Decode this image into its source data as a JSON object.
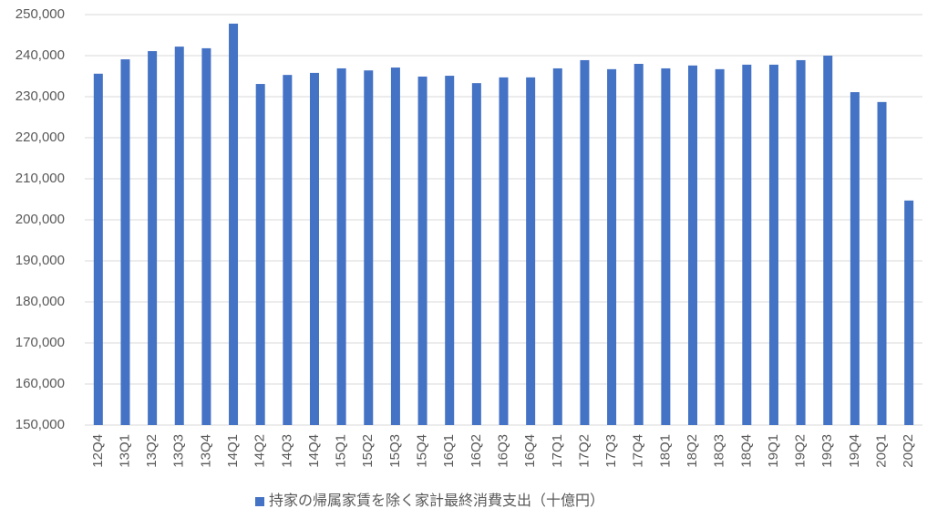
{
  "chart_data": {
    "type": "bar",
    "categories": [
      "12Q4",
      "13Q1",
      "13Q2",
      "13Q3",
      "13Q4",
      "14Q1",
      "14Q2",
      "14Q3",
      "14Q4",
      "15Q1",
      "15Q2",
      "15Q3",
      "15Q4",
      "16Q1",
      "16Q2",
      "16Q3",
      "16Q4",
      "17Q1",
      "17Q2",
      "17Q3",
      "17Q4",
      "18Q1",
      "18Q2",
      "18Q3",
      "18Q4",
      "19Q1",
      "19Q2",
      "19Q3",
      "19Q4",
      "20Q1",
      "20Q2"
    ],
    "series": [
      {
        "name": "持家の帰属家賃を除く家計最終消費支出（十億円）",
        "color": "#4472c4",
        "values": [
          235600,
          239100,
          241100,
          242200,
          241800,
          247800,
          233100,
          235300,
          235800,
          236900,
          236400,
          237100,
          234900,
          235100,
          233300,
          234700,
          234700,
          236900,
          238900,
          236700,
          238000,
          236900,
          237600,
          236700,
          237800,
          237800,
          238900,
          240000,
          231100,
          228700,
          204700
        ]
      }
    ],
    "ylim": [
      150000,
      250000
    ],
    "yticks": [
      {
        "value": 150000,
        "label": "150,000"
      },
      {
        "value": 160000,
        "label": "160,000"
      },
      {
        "value": 170000,
        "label": "170,000"
      },
      {
        "value": 180000,
        "label": "180,000"
      },
      {
        "value": 190000,
        "label": "190,000"
      },
      {
        "value": 200000,
        "label": "200,000"
      },
      {
        "value": 210000,
        "label": "210,000"
      },
      {
        "value": 220000,
        "label": "220,000"
      },
      {
        "value": 230000,
        "label": "230,000"
      },
      {
        "value": 240000,
        "label": "240,000"
      },
      {
        "value": 250000,
        "label": "250,000"
      }
    ],
    "grid": true,
    "legend": "bottom"
  }
}
